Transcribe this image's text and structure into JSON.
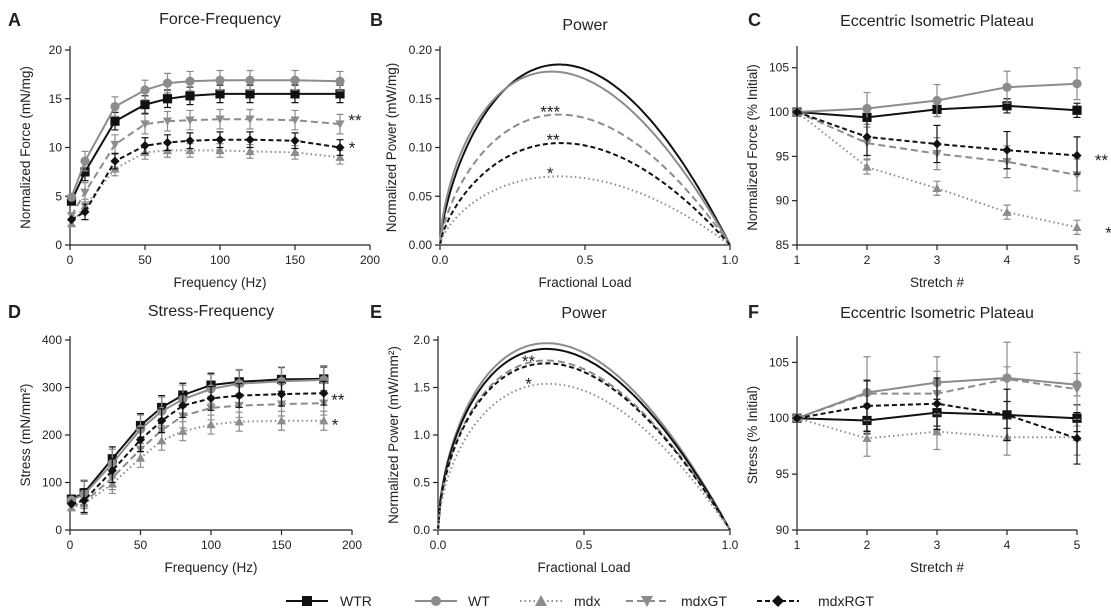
{
  "legend": [
    {
      "label": "WTR"
    },
    {
      "label": "WT"
    },
    {
      "label": "mdx"
    },
    {
      "label": "mdxGT"
    },
    {
      "label": "mdxRGT"
    }
  ],
  "series_styles": {
    "WTR": {
      "color": "#111111",
      "dash": "",
      "marker": "square"
    },
    "WT": {
      "color": "#8c8c8c",
      "dash": "",
      "marker": "circle"
    },
    "mdx": {
      "color": "#8c8c8c",
      "dash": "1.5,3",
      "marker": "triangle-up"
    },
    "mdxGT": {
      "color": "#8c8c8c",
      "dash": "7,4",
      "marker": "triangle-down"
    },
    "mdxRGT": {
      "color": "#111111",
      "dash": "5,3",
      "marker": "diamond"
    }
  },
  "chart_data": [
    {
      "letter": "A",
      "title": "Force-Frequency",
      "type": "line",
      "xlabel": "Frequency (Hz)",
      "ylabel": "Normalized Force (mN/mg)",
      "xlim": [
        0,
        200
      ],
      "ylim": [
        0,
        20
      ],
      "xticks": [
        0,
        50,
        100,
        150,
        200
      ],
      "yticks": [
        0,
        5,
        10,
        15,
        20
      ],
      "x": [
        1,
        10,
        30,
        50,
        65,
        80,
        100,
        120,
        150,
        180
      ],
      "series": [
        {
          "name": "WTR",
          "values": [
            4.5,
            7.5,
            12.7,
            14.4,
            15.0,
            15.3,
            15.5,
            15.5,
            15.5,
            15.5
          ],
          "err": 0.9
        },
        {
          "name": "WT",
          "values": [
            4.9,
            8.6,
            14.2,
            15.9,
            16.6,
            16.8,
            16.9,
            16.9,
            16.9,
            16.8
          ],
          "err": 1.0
        },
        {
          "name": "mdx",
          "values": [
            2.2,
            4.0,
            7.8,
            9.5,
            9.7,
            9.7,
            9.7,
            9.6,
            9.5,
            9.0
          ],
          "err": 0.7
        },
        {
          "name": "mdxGT",
          "values": [
            3.0,
            5.4,
            10.3,
            12.4,
            12.7,
            12.8,
            12.9,
            12.9,
            12.8,
            12.4
          ],
          "err": 1.0
        },
        {
          "name": "mdxRGT",
          "values": [
            2.6,
            3.4,
            8.6,
            10.2,
            10.5,
            10.7,
            10.8,
            10.8,
            10.7,
            10.0
          ],
          "err": 0.8
        }
      ],
      "annotations": [
        {
          "text": "**",
          "x": 190,
          "y": 12.8
        },
        {
          "text": "*",
          "x": 188,
          "y": 10.0
        }
      ]
    },
    {
      "letter": "B",
      "title": "Power",
      "type": "line",
      "xlabel": "Fractional Load",
      "ylabel": "Normalized Power (mW/mg)",
      "xlim": [
        0,
        1
      ],
      "ylim": [
        0,
        0.2
      ],
      "xticks": [
        0,
        0.5,
        1
      ],
      "xticklabels": [
        "0.0",
        "0.5",
        "1.0"
      ],
      "yticks": [
        0,
        0.05,
        0.1,
        0.15,
        0.2
      ],
      "yticklabels": [
        "0.00",
        "0.05",
        "0.10",
        "0.15",
        "0.20"
      ],
      "curve": "power",
      "series": [
        {
          "name": "WTR",
          "peak": 0.184,
          "peak_x": 0.37
        },
        {
          "name": "WT",
          "peak": 0.176,
          "peak_x": 0.33
        },
        {
          "name": "mdxGT",
          "peak": 0.133,
          "peak_x": 0.37
        },
        {
          "name": "mdxRGT",
          "peak": 0.104,
          "peak_x": 0.38
        },
        {
          "name": "mdx",
          "peak": 0.07,
          "peak_x": 0.37
        }
      ],
      "annotations": [
        {
          "text": "***",
          "x": 0.38,
          "y": 0.137
        },
        {
          "text": "**",
          "x": 0.39,
          "y": 0.108
        },
        {
          "text": "*",
          "x": 0.38,
          "y": 0.074
        }
      ]
    },
    {
      "letter": "C",
      "title": "Eccentric Isometric Plateau",
      "type": "line",
      "xlabel": "Stretch #",
      "ylabel": "Normalized Force (% Initial)",
      "xlim": [
        1,
        5
      ],
      "ylim": [
        85,
        107
      ],
      "xticks": [
        1,
        2,
        3,
        4,
        5
      ],
      "yticks": [
        85,
        90,
        95,
        100,
        105
      ],
      "x": [
        1,
        2,
        3,
        4,
        5
      ],
      "series": [
        {
          "name": "WTR",
          "values": [
            100,
            99.4,
            100.3,
            100.7,
            100.2
          ],
          "err": 0.8
        },
        {
          "name": "WT",
          "values": [
            100,
            100.4,
            101.3,
            102.8,
            103.2
          ],
          "err": 1.8
        },
        {
          "name": "mdx",
          "values": [
            100,
            93.8,
            91.4,
            88.7,
            87.0
          ],
          "err": 0.8
        },
        {
          "name": "mdxGT",
          "values": [
            100,
            96.5,
            95.3,
            94.4,
            92.9
          ],
          "err": 1.8
        },
        {
          "name": "mdxRGT",
          "values": [
            100,
            97.2,
            96.4,
            95.7,
            95.1
          ],
          "err": 2.1
        }
      ],
      "annotations": [
        {
          "text": "**",
          "x": 5.35,
          "y": 94.6
        },
        {
          "text": "*",
          "x": 5.45,
          "y": 86.4
        }
      ]
    },
    {
      "letter": "D",
      "title": "Stress-Frequency",
      "type": "line",
      "xlabel": "Frequency (Hz)",
      "ylabel": "Stress (mN/mm²)",
      "xlim": [
        0,
        200
      ],
      "ylim": [
        0,
        400
      ],
      "xticks": [
        0,
        50,
        100,
        150,
        200
      ],
      "yticks": [
        0,
        100,
        200,
        300,
        400
      ],
      "x": [
        1,
        10,
        30,
        50,
        65,
        80,
        100,
        120,
        150,
        180
      ],
      "series": [
        {
          "name": "WTR",
          "values": [
            65,
            78,
            150,
            220,
            258,
            284,
            305,
            312,
            317,
            318
          ],
          "err": 25
        },
        {
          "name": "WT",
          "values": [
            63,
            75,
            140,
            212,
            250,
            275,
            297,
            308,
            313,
            316
          ],
          "err": 30
        },
        {
          "name": "mdx",
          "values": [
            47,
            55,
            97,
            152,
            188,
            208,
            222,
            228,
            230,
            230
          ],
          "err": 20
        },
        {
          "name": "mdxGT",
          "values": [
            50,
            58,
            110,
            170,
            210,
            240,
            257,
            262,
            265,
            267
          ],
          "err": 25
        },
        {
          "name": "mdxRGT",
          "values": [
            55,
            62,
            125,
            190,
            230,
            262,
            277,
            283,
            286,
            288
          ],
          "err": 25
        }
      ],
      "annotations": [
        {
          "text": "**",
          "x": 190,
          "y": 275
        },
        {
          "text": "*",
          "x": 188,
          "y": 222
        }
      ]
    },
    {
      "letter": "E",
      "title": "Power",
      "type": "line",
      "xlabel": "Fractional Load",
      "ylabel": "Normalized Power (mW/mm²)",
      "xlim": [
        0,
        1
      ],
      "ylim": [
        0,
        2
      ],
      "xticks": [
        0,
        0.5,
        1
      ],
      "xticklabels": [
        "0.0",
        "0.5",
        "1.0"
      ],
      "yticks": [
        0,
        0.5,
        1,
        1.5,
        2
      ],
      "yticklabels": [
        "0.0",
        "0.5",
        "1.0",
        "1.5",
        "2.0"
      ],
      "curve": "power",
      "series": [
        {
          "name": "WT",
          "peak": 1.94,
          "peak_x": 0.31
        },
        {
          "name": "WTR",
          "peak": 1.88,
          "peak_x": 0.31
        },
        {
          "name": "mdxGT",
          "peak": 1.76,
          "peak_x": 0.31
        },
        {
          "name": "mdxRGT",
          "peak": 1.73,
          "peak_x": 0.31
        },
        {
          "name": "mdx",
          "peak": 1.52,
          "peak_x": 0.32
        }
      ],
      "annotations": [
        {
          "text": "**",
          "x": 0.31,
          "y": 1.78
        },
        {
          "text": "*",
          "x": 0.31,
          "y": 1.54
        }
      ]
    },
    {
      "letter": "F",
      "title": "Eccentric Isometric Plateau",
      "type": "line",
      "xlabel": "Stretch #",
      "ylabel": "Stress (% Initial)",
      "xlim": [
        1,
        5
      ],
      "ylim": [
        90,
        107
      ],
      "xticks": [
        1,
        2,
        3,
        4,
        5
      ],
      "yticks": [
        90,
        95,
        100,
        105
      ],
      "x": [
        1,
        2,
        3,
        4,
        5
      ],
      "series": [
        {
          "name": "WTR",
          "values": [
            100,
            99.8,
            100.5,
            100.3,
            100.0
          ],
          "err": 1.2
        },
        {
          "name": "WT",
          "values": [
            100,
            102.3,
            103.2,
            103.6,
            103.0
          ],
          "err": 1.0
        },
        {
          "name": "mdx",
          "values": [
            100,
            98.2,
            98.8,
            98.3,
            98.3
          ],
          "err": 1.6
        },
        {
          "name": "mdxGT",
          "values": [
            100,
            102.2,
            102.2,
            103.5,
            102.6
          ],
          "err": 3.3
        },
        {
          "name": "mdxRGT",
          "values": [
            100,
            101.1,
            101.3,
            100.3,
            98.2
          ],
          "err": 2.3
        }
      ],
      "annotations": []
    }
  ]
}
